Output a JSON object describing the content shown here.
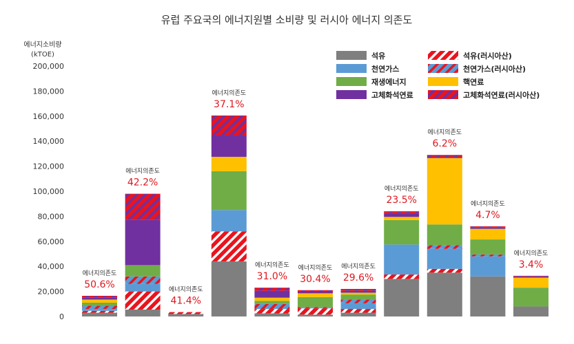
{
  "chart_data": {
    "type": "bar",
    "stacked": true,
    "title": "유럽 주요국의 에너지원별 소비량 및 러시아 에너지 의존도",
    "ylabel_line1": "에너지소비량",
    "ylabel_line2": "(kTOE)",
    "ylim": [
      0,
      200000
    ],
    "yticks": [
      0,
      20000,
      40000,
      60000,
      80000,
      100000,
      120000,
      140000,
      160000,
      180000,
      200000
    ],
    "ytick_labels": [
      "0",
      "20,000",
      "40,000",
      "60,000",
      "80,000",
      "100,000",
      "120,000",
      "140,000",
      "160,000",
      "180,000",
      "200,000"
    ],
    "categories": [
      "",
      "",
      "",
      "",
      "",
      "",
      "",
      "",
      "",
      "",
      "",
      ""
    ],
    "series": [
      {
        "name": "석유",
        "color": "#7f7f7f",
        "pattern": "solid",
        "values": [
          3000,
          5500,
          2000,
          44000,
          2500,
          1500,
          3000,
          30000,
          35000,
          32000,
          8000,
          0
        ]
      },
      {
        "name": "석유(러시아산)",
        "color": "#e8141e",
        "pattern": "hatched",
        "values": [
          1500,
          14500,
          1500,
          24000,
          3500,
          5000,
          3000,
          3500,
          3000,
          0,
          0,
          0
        ]
      },
      {
        "name": "천연가스",
        "color": "#5b9bd5",
        "pattern": "solid",
        "values": [
          1500,
          6000,
          0,
          17000,
          0,
          0,
          4500,
          24000,
          16000,
          16000,
          0,
          0
        ]
      },
      {
        "name": "천연가스(러시아산)",
        "color": "#5b9bd5",
        "pattern": "hatched",
        "values": [
          2500,
          6000,
          0,
          0,
          4000,
          1000,
          3000,
          0,
          3000,
          1500,
          0,
          0
        ]
      },
      {
        "name": "재생에너지",
        "color": "#70ad47",
        "pattern": "solid",
        "values": [
          2500,
          9000,
          0,
          31000,
          2500,
          8000,
          4000,
          19500,
          16500,
          12000,
          15000,
          0
        ]
      },
      {
        "name": "핵연료",
        "color": "#ffc000",
        "pattern": "solid",
        "values": [
          2500,
          0,
          0,
          11500,
          2500,
          3000,
          1500,
          2500,
          53000,
          8500,
          8000,
          0
        ]
      },
      {
        "name": "고체화석연료",
        "color": "#7030a0",
        "pattern": "solid",
        "values": [
          1500,
          36000,
          0,
          17000,
          5500,
          1000,
          1500,
          3000,
          1000,
          1000,
          1000,
          0
        ]
      },
      {
        "name": "고체화석연료(러시아산)",
        "color": "#e8141e",
        "pattern": "hatched-purple",
        "values": [
          1500,
          21000,
          0,
          16000,
          2500,
          1500,
          1500,
          1500,
          1500,
          1000,
          500,
          0
        ]
      }
    ],
    "dependency_label": "에너지의존도",
    "dependency_values": [
      "50.6%",
      "42.2%",
      "41.4%",
      "37.1%",
      "31.0%",
      "30.4%",
      "29.6%",
      "23.5%",
      "6.2%",
      "4.7%",
      "3.4%"
    ],
    "legend_position": "top-right",
    "grid": false
  }
}
